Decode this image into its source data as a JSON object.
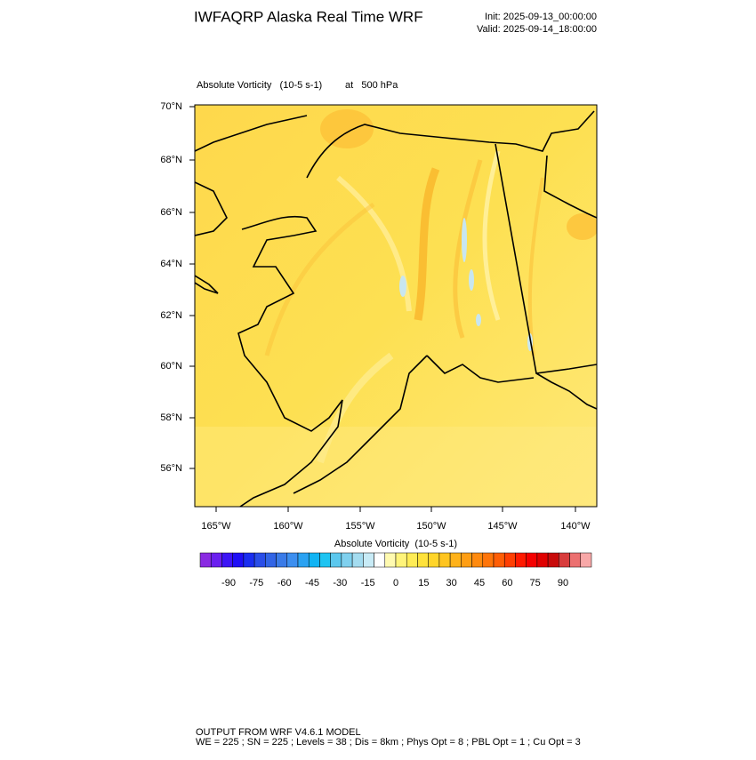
{
  "header": {
    "title": "IWFAQRP Alaska Real Time WRF",
    "init": "Init: 2025-09-13_00:00:00",
    "valid": "Valid: 2025-09-14_18:00:00"
  },
  "plot": {
    "field": "Absolute Vorticity   (10-5 s-1)",
    "level": "at   500 hPa",
    "lat_labels": [
      "70°N",
      "68°N",
      "66°N",
      "64°N",
      "62°N",
      "60°N",
      "58°N",
      "56°N"
    ],
    "lon_labels": [
      "165°W",
      "160°W",
      "155°W",
      "150°W",
      "145°W",
      "140°W"
    ]
  },
  "colorbar": {
    "title": "Absolute Vorticity  (10-5 s-1)",
    "labels": [
      -90,
      -75,
      -60,
      -45,
      -30,
      -15,
      0,
      15,
      30,
      45,
      60,
      75,
      90
    ],
    "colors": [
      "#8a2be2",
      "#6a1fef",
      "#3c14f5",
      "#1e0ff5",
      "#1a2ef0",
      "#2a4ee8",
      "#3265e6",
      "#3a7be8",
      "#3d8ff0",
      "#2aa2f2",
      "#11b4f4",
      "#1ec4f2",
      "#5bc8ee",
      "#7fd0ee",
      "#a4dcf0",
      "#c8ebf6",
      "#ffffff",
      "#fffab0",
      "#fff47a",
      "#ffec55",
      "#ffe23a",
      "#ffd52a",
      "#ffc520",
      "#ffb21a",
      "#ff9e14",
      "#ff8a0e",
      "#ff750a",
      "#ff5e06",
      "#ff3f03",
      "#ff1a00",
      "#f50000",
      "#e00000",
      "#c80a0a",
      "#d83c3c",
      "#ec7070",
      "#f8a8a8"
    ]
  },
  "footer": {
    "line1": "OUTPUT FROM WRF V4.6.1 MODEL",
    "line2": "WE = 225 ; SN = 225 ; Levels = 38 ; Dis = 8km ; Phys Opt = 8 ; PBL Opt = 1 ; Cu Opt = 3"
  }
}
